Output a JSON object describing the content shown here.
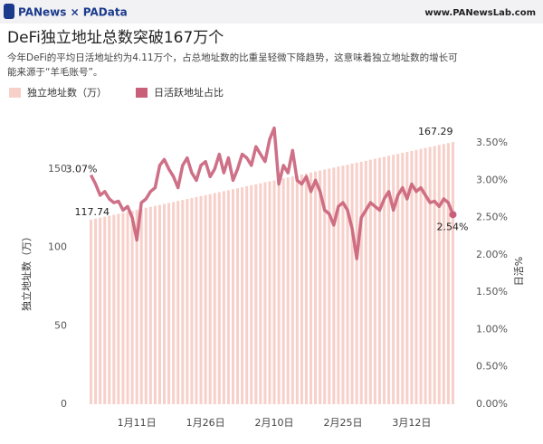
{
  "header": {
    "logo": "PANews × PAData",
    "url": "www.PANewsLab.com"
  },
  "chart_data": {
    "type": "bar_line",
    "title": "DeFi独立地址总数突破167万个",
    "subtitle": [
      "今年DeFi的平均日活地址约为4.11万个，占总地址数的比重呈轻微下降趋势，这意味着独立地址数的增长可",
      "能来源于“羊毛账号”。"
    ],
    "y_label": "独立地址数（万）",
    "y2_label": "日活%",
    "categories": [
      null,
      null,
      null,
      null,
      null,
      null,
      null,
      null,
      null,
      null,
      "1月11日",
      null,
      null,
      null,
      null,
      null,
      null,
      null,
      null,
      null,
      null,
      null,
      null,
      null,
      null,
      "1月26日",
      null,
      null,
      null,
      null,
      null,
      null,
      null,
      null,
      null,
      null,
      null,
      null,
      null,
      null,
      "2月10日",
      null,
      null,
      null,
      null,
      null,
      null,
      null,
      null,
      null,
      null,
      null,
      null,
      null,
      null,
      "2月25日",
      null,
      null,
      null,
      null,
      null,
      null,
      null,
      null,
      null,
      null,
      null,
      null,
      null,
      null,
      "3月12日",
      null,
      null,
      null,
      null,
      null,
      null,
      null,
      null,
      null
    ],
    "series": [
      {
        "name": "独立地址数（万）",
        "type": "bar",
        "color": "#f7d0ca",
        "values": [
          117.74,
          118.4,
          119.0,
          119.6,
          120.3,
          120.9,
          121.5,
          122.1,
          122.8,
          123.4,
          124.0,
          124.6,
          125.3,
          125.9,
          126.5,
          127.1,
          127.8,
          128.4,
          129.0,
          129.7,
          130.3,
          130.9,
          131.5,
          132.2,
          132.8,
          133.4,
          134.0,
          134.7,
          135.3,
          135.9,
          136.5,
          137.2,
          137.8,
          138.4,
          139.1,
          139.7,
          140.3,
          140.9,
          141.6,
          142.2,
          142.8,
          143.4,
          144.1,
          144.7,
          145.3,
          145.9,
          146.6,
          147.2,
          147.8,
          148.5,
          149.1,
          149.7,
          150.3,
          151.0,
          151.6,
          152.2,
          152.8,
          153.5,
          154.1,
          154.7,
          155.3,
          156.0,
          156.6,
          157.2,
          157.8,
          158.5,
          159.1,
          159.7,
          160.4,
          161.0,
          161.6,
          162.2,
          162.9,
          163.5,
          164.1,
          164.7,
          165.4,
          166.0,
          166.6,
          167.29
        ]
      },
      {
        "name": "日活跃地址占比",
        "type": "line",
        "axis": "y2",
        "color": "#c9607a",
        "values": [
          3.07,
          2.95,
          2.8,
          2.85,
          2.75,
          2.7,
          2.72,
          2.6,
          2.65,
          2.5,
          2.2,
          2.7,
          2.75,
          2.85,
          2.9,
          3.2,
          3.28,
          3.15,
          3.05,
          2.9,
          3.2,
          3.3,
          3.1,
          3.0,
          3.2,
          3.25,
          3.05,
          3.15,
          3.35,
          3.1,
          3.3,
          3.0,
          3.15,
          3.35,
          3.3,
          3.2,
          3.45,
          3.35,
          3.25,
          3.55,
          3.7,
          2.95,
          3.2,
          3.1,
          3.4,
          3.0,
          2.95,
          3.05,
          2.85,
          3.0,
          2.85,
          2.6,
          2.55,
          2.4,
          2.65,
          2.7,
          2.6,
          2.35,
          1.95,
          2.5,
          2.6,
          2.7,
          2.65,
          2.6,
          2.75,
          2.85,
          2.6,
          2.8,
          2.9,
          2.75,
          2.95,
          2.85,
          2.9,
          2.8,
          2.7,
          2.72,
          2.65,
          2.75,
          2.7,
          2.54
        ],
        "value_labels": [
          "3.07%",
          null,
          null,
          null,
          null,
          null,
          null,
          null,
          null,
          null,
          null,
          null,
          null,
          null,
          null,
          null,
          null,
          null,
          null,
          null,
          null,
          null,
          null,
          null,
          null,
          null,
          null,
          null,
          null,
          null,
          null,
          null,
          null,
          null,
          null,
          null,
          null,
          null,
          null,
          null,
          null,
          null,
          null,
          null,
          null,
          null,
          null,
          null,
          null,
          null,
          null,
          null,
          null,
          null,
          null,
          null,
          null,
          null,
          null,
          null,
          null,
          null,
          null,
          null,
          null,
          null,
          null,
          null,
          null,
          null,
          null,
          null,
          null,
          null,
          null,
          null,
          null,
          null,
          null,
          "2.54%"
        ]
      }
    ],
    "ylim": [
      0,
      180
    ],
    "yticks": [
      0,
      50,
      100,
      150
    ],
    "y2lim": [
      0,
      3.78
    ],
    "y2ticks": [
      {
        "value": 0,
        "label": "0.00%"
      },
      {
        "value": 0.5,
        "label": "0.50%"
      },
      {
        "value": 1,
        "label": "1.00%"
      },
      {
        "value": 1.5,
        "label": "1.50%"
      },
      {
        "value": 2,
        "label": "2.00%"
      },
      {
        "value": 2.5,
        "label": "2.50%"
      },
      {
        "value": 3,
        "label": "3.00%"
      },
      {
        "value": 3.5,
        "label": "3.50%"
      }
    ],
    "legend": "top-left"
  }
}
